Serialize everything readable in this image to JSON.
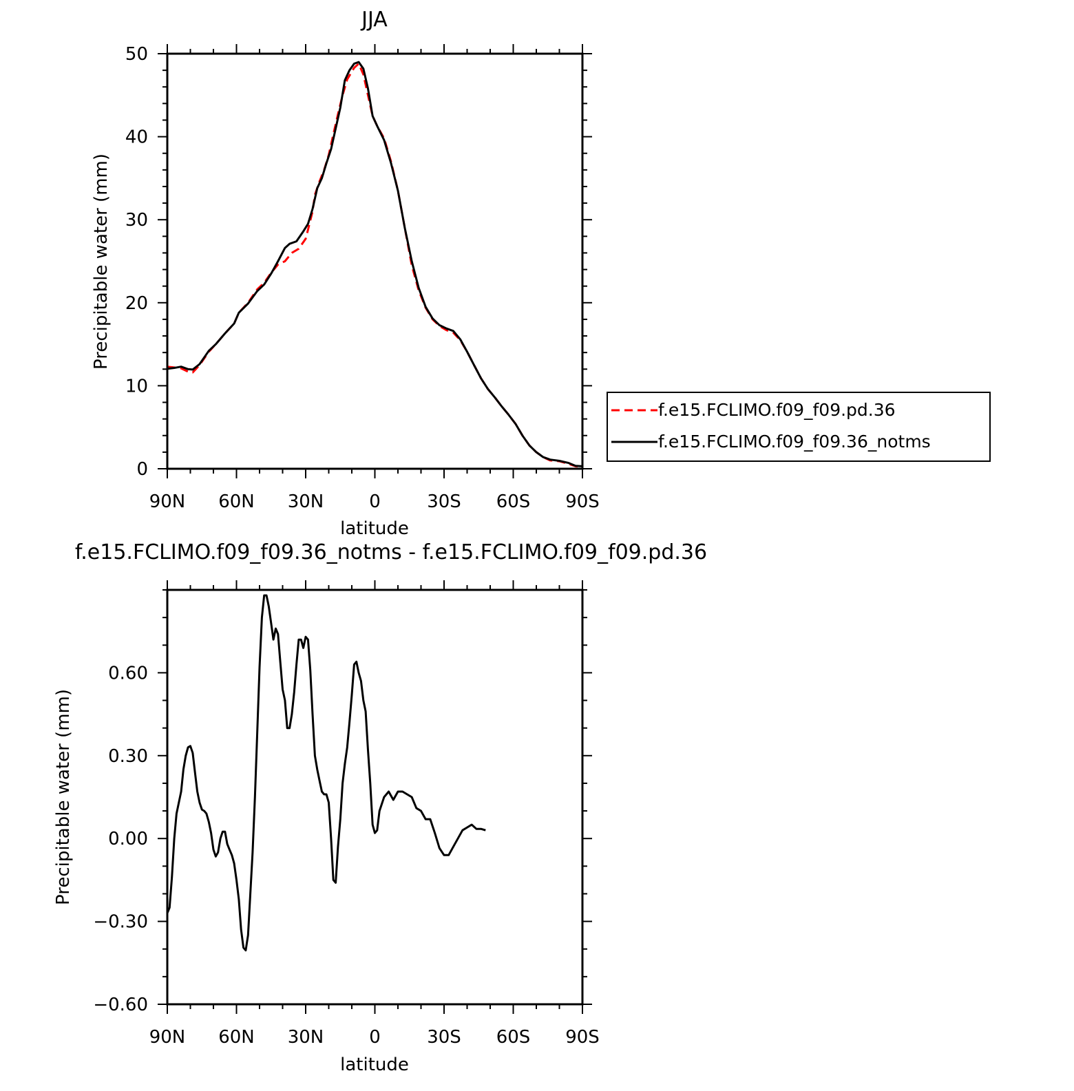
{
  "chart_data": [
    {
      "type": "line",
      "title": "JJA",
      "xlabel": "latitude",
      "ylabel": "Precipitable water (mm)",
      "xlim": [
        90,
        -90
      ],
      "ylim": [
        0,
        50
      ],
      "x_ticks": [
        90,
        60,
        30,
        0,
        -30,
        -60,
        -90
      ],
      "x_tick_labels": [
        "90N",
        "60N",
        "30N",
        "0",
        "30S",
        "60S",
        "90S"
      ],
      "y_ticks": [
        0,
        10,
        20,
        30,
        40,
        50
      ],
      "y_tick_labels": [
        "0",
        "10",
        "20",
        "30",
        "40",
        "50"
      ],
      "legend_position": "right",
      "series": [
        {
          "name": "f.e15.FCLIMO.f09_f09.pd.36",
          "color": "#ff0000",
          "style": "dashed",
          "points": [
            [
              90,
              12.3
            ],
            [
              87,
              12.2
            ],
            [
              84,
              12.1
            ],
            [
              81,
              11.7
            ],
            [
              79,
              11.6
            ],
            [
              76,
              12.5
            ],
            [
              72,
              14.1
            ],
            [
              69,
              15.0
            ],
            [
              65,
              16.3
            ],
            [
              61,
              17.5
            ],
            [
              59,
              18.8
            ],
            [
              55,
              20.0
            ],
            [
              51,
              21.6
            ],
            [
              48,
              22.4
            ],
            [
              45,
              23.6
            ],
            [
              42,
              24.6
            ],
            [
              39,
              25.0
            ],
            [
              36,
              26.0
            ],
            [
              33,
              26.5
            ],
            [
              30,
              27.7
            ],
            [
              29,
              28.8
            ],
            [
              27,
              31.0
            ],
            [
              26,
              33.0
            ],
            [
              24,
              34.6
            ],
            [
              22,
              36.0
            ],
            [
              20,
              37.8
            ],
            [
              18,
              40.3
            ],
            [
              16,
              42.7
            ],
            [
              14,
              45.0
            ],
            [
              12,
              46.9
            ],
            [
              9,
              48.3
            ],
            [
              7,
              48.8
            ],
            [
              5,
              47.5
            ],
            [
              3,
              45.0
            ],
            [
              1,
              42.5
            ],
            [
              -1,
              41.3
            ],
            [
              -4,
              39.8
            ],
            [
              -7,
              37.0
            ],
            [
              -10,
              33.5
            ],
            [
              -13,
              29.0
            ],
            [
              -16,
              24.5
            ],
            [
              -19,
              21.5
            ],
            [
              -22,
              19.4
            ],
            [
              -25,
              18.0
            ],
            [
              -28,
              17.2
            ],
            [
              -31,
              16.7
            ],
            [
              -34,
              16.4
            ],
            [
              -37,
              15.5
            ],
            [
              -40,
              14.1
            ],
            [
              -43,
              12.5
            ],
            [
              -46,
              10.9
            ],
            [
              -49,
              9.6
            ],
            [
              -52,
              8.6
            ],
            [
              -55,
              7.5
            ],
            [
              -58,
              6.5
            ],
            [
              -61,
              5.4
            ],
            [
              -64,
              4.0
            ],
            [
              -67,
              2.8
            ],
            [
              -70,
              2.0
            ],
            [
              -73,
              1.4
            ],
            [
              -76,
              1.0
            ],
            [
              -80,
              0.9
            ],
            [
              -84,
              0.6
            ],
            [
              -87,
              0.3
            ],
            [
              -90,
              0.25
            ]
          ]
        },
        {
          "name": "f.e15.FCLIMO.f09_f09.36_notms",
          "color": "#000000",
          "style": "solid",
          "points": [
            [
              90,
              12.05
            ],
            [
              87,
              12.15
            ],
            [
              84,
              12.3
            ],
            [
              81,
              12.0
            ],
            [
              79,
              11.95
            ],
            [
              76,
              12.6
            ],
            [
              72,
              14.2
            ],
            [
              69,
              15.0
            ],
            [
              65,
              16.3
            ],
            [
              61,
              17.5
            ],
            [
              59,
              18.8
            ],
            [
              55,
              19.9
            ],
            [
              51,
              21.4
            ],
            [
              48,
              22.2
            ],
            [
              45,
              23.5
            ],
            [
              42,
              25.0
            ],
            [
              39,
              26.6
            ],
            [
              37,
              27.1
            ],
            [
              34,
              27.4
            ],
            [
              31,
              28.6
            ],
            [
              29,
              29.5
            ],
            [
              27,
              31.3
            ],
            [
              25,
              33.8
            ],
            [
              23,
              35.0
            ],
            [
              21,
              36.8
            ],
            [
              19,
              38.5
            ],
            [
              17,
              41.0
            ],
            [
              15,
              43.5
            ],
            [
              13,
              46.8
            ],
            [
              11,
              48.0
            ],
            [
              9,
              48.8
            ],
            [
              7,
              49.0
            ],
            [
              5,
              48.2
            ],
            [
              3,
              45.8
            ],
            [
              1,
              42.5
            ],
            [
              -1,
              41.3
            ],
            [
              -4,
              39.6
            ],
            [
              -7,
              36.8
            ],
            [
              -10,
              33.5
            ],
            [
              -13,
              29.0
            ],
            [
              -16,
              25.0
            ],
            [
              -19,
              21.8
            ],
            [
              -22,
              19.5
            ],
            [
              -25,
              18.1
            ],
            [
              -28,
              17.3
            ],
            [
              -31,
              16.9
            ],
            [
              -34,
              16.6
            ],
            [
              -37,
              15.6
            ],
            [
              -40,
              14.1
            ],
            [
              -43,
              12.5
            ],
            [
              -46,
              10.9
            ],
            [
              -49,
              9.6
            ],
            [
              -52,
              8.6
            ],
            [
              -55,
              7.5
            ],
            [
              -58,
              6.5
            ],
            [
              -61,
              5.4
            ],
            [
              -64,
              4.0
            ],
            [
              -67,
              2.8
            ],
            [
              -70,
              2.0
            ],
            [
              -73,
              1.4
            ],
            [
              -76,
              1.1
            ],
            [
              -80,
              0.95
            ],
            [
              -84,
              0.7
            ],
            [
              -87,
              0.35
            ],
            [
              -90,
              0.3
            ]
          ]
        }
      ]
    },
    {
      "type": "line",
      "title": "f.e15.FCLIMO.f09_f09.36_notms - f.e15.FCLIMO.f09_f09.pd.36",
      "xlabel": "latitude",
      "ylabel": "Precipitable water (mm)",
      "xlim": [
        90,
        -90
      ],
      "ylim": [
        -0.6,
        0.9
      ],
      "x_ticks": [
        90,
        60,
        30,
        0,
        -30,
        -60,
        -90
      ],
      "x_tick_labels": [
        "90N",
        "60N",
        "30N",
        "0",
        "30S",
        "60S",
        "90S"
      ],
      "y_ticks": [
        -0.6,
        -0.3,
        0.0,
        0.3,
        0.6
      ],
      "y_tick_labels": [
        "-0.60",
        "-0.30",
        "0.00",
        "0.30",
        "0.60"
      ],
      "series": [
        {
          "color": "#000000",
          "style": "solid",
          "points": [
            [
              90,
              -0.27
            ],
            [
              89,
              -0.25
            ],
            [
              88,
              -0.14
            ],
            [
              87,
              0.0
            ],
            [
              86,
              0.09
            ],
            [
              84,
              0.17
            ],
            [
              83,
              0.25
            ],
            [
              82,
              0.3
            ],
            [
              81,
              0.33
            ],
            [
              80,
              0.335
            ],
            [
              79,
              0.31
            ],
            [
              78,
              0.24
            ],
            [
              77,
              0.17
            ],
            [
              76,
              0.13
            ],
            [
              75,
              0.105
            ],
            [
              74,
              0.1
            ],
            [
              73,
              0.09
            ],
            [
              72,
              0.06
            ],
            [
              71,
              0.02
            ],
            [
              70,
              -0.04
            ],
            [
              69,
              -0.065
            ],
            [
              68,
              -0.05
            ],
            [
              67,
              0.0
            ],
            [
              66,
              0.025
            ],
            [
              65,
              0.025
            ],
            [
              64,
              -0.02
            ],
            [
              63,
              -0.04
            ],
            [
              62,
              -0.06
            ],
            [
              61,
              -0.09
            ],
            [
              60,
              -0.15
            ],
            [
              59,
              -0.22
            ],
            [
              58,
              -0.33
            ],
            [
              57,
              -0.395
            ],
            [
              56,
              -0.405
            ],
            [
              55,
              -0.35
            ],
            [
              54,
              -0.2
            ],
            [
              53,
              -0.05
            ],
            [
              52,
              0.15
            ],
            [
              51,
              0.38
            ],
            [
              50,
              0.62
            ],
            [
              49,
              0.8
            ],
            [
              48,
              0.88
            ],
            [
              47,
              0.88
            ],
            [
              46,
              0.84
            ],
            [
              45,
              0.78
            ],
            [
              44,
              0.72
            ],
            [
              43,
              0.76
            ],
            [
              42,
              0.74
            ],
            [
              41,
              0.64
            ],
            [
              40,
              0.54
            ],
            [
              39,
              0.5
            ],
            [
              38,
              0.4
            ],
            [
              37,
              0.4
            ],
            [
              36,
              0.45
            ],
            [
              35,
              0.53
            ],
            [
              34,
              0.63
            ],
            [
              33,
              0.72
            ],
            [
              32,
              0.72
            ],
            [
              31,
              0.69
            ],
            [
              30,
              0.73
            ],
            [
              29,
              0.72
            ],
            [
              28,
              0.61
            ],
            [
              27,
              0.45
            ],
            [
              26,
              0.3
            ],
            [
              25,
              0.25
            ],
            [
              24,
              0.21
            ],
            [
              23,
              0.17
            ],
            [
              22,
              0.16
            ],
            [
              21,
              0.16
            ],
            [
              20,
              0.13
            ],
            [
              19,
              0.0
            ],
            [
              18,
              -0.15
            ],
            [
              17,
              -0.16
            ],
            [
              16,
              -0.03
            ],
            [
              15,
              0.07
            ],
            [
              14,
              0.2
            ],
            [
              13,
              0.27
            ],
            [
              12,
              0.33
            ],
            [
              11,
              0.42
            ],
            [
              10,
              0.52
            ],
            [
              9,
              0.63
            ],
            [
              8,
              0.64
            ],
            [
              7,
              0.6
            ],
            [
              6,
              0.57
            ],
            [
              5,
              0.5
            ],
            [
              4,
              0.46
            ],
            [
              3,
              0.32
            ],
            [
              2,
              0.2
            ],
            [
              1,
              0.05
            ],
            [
              0,
              0.02
            ],
            [
              -1,
              0.03
            ],
            [
              -2,
              0.1
            ],
            [
              -4,
              0.15
            ],
            [
              -6,
              0.17
            ],
            [
              -8,
              0.14
            ],
            [
              -10,
              0.17
            ],
            [
              -12,
              0.17
            ],
            [
              -14,
              0.16
            ],
            [
              -16,
              0.15
            ],
            [
              -18,
              0.11
            ],
            [
              -20,
              0.1
            ],
            [
              -22,
              0.07
            ],
            [
              -24,
              0.07
            ],
            [
              -26,
              0.02
            ],
            [
              -28,
              -0.035
            ],
            [
              -30,
              -0.06
            ],
            [
              -32,
              -0.06
            ],
            [
              -34,
              -0.03
            ],
            [
              -36,
              0.0
            ],
            [
              -38,
              0.03
            ],
            [
              -40,
              0.04
            ],
            [
              -42,
              0.05
            ],
            [
              -44,
              0.035
            ],
            [
              -46,
              0.035
            ],
            [
              -48,
              0.03
            ]
          ]
        }
      ]
    }
  ]
}
